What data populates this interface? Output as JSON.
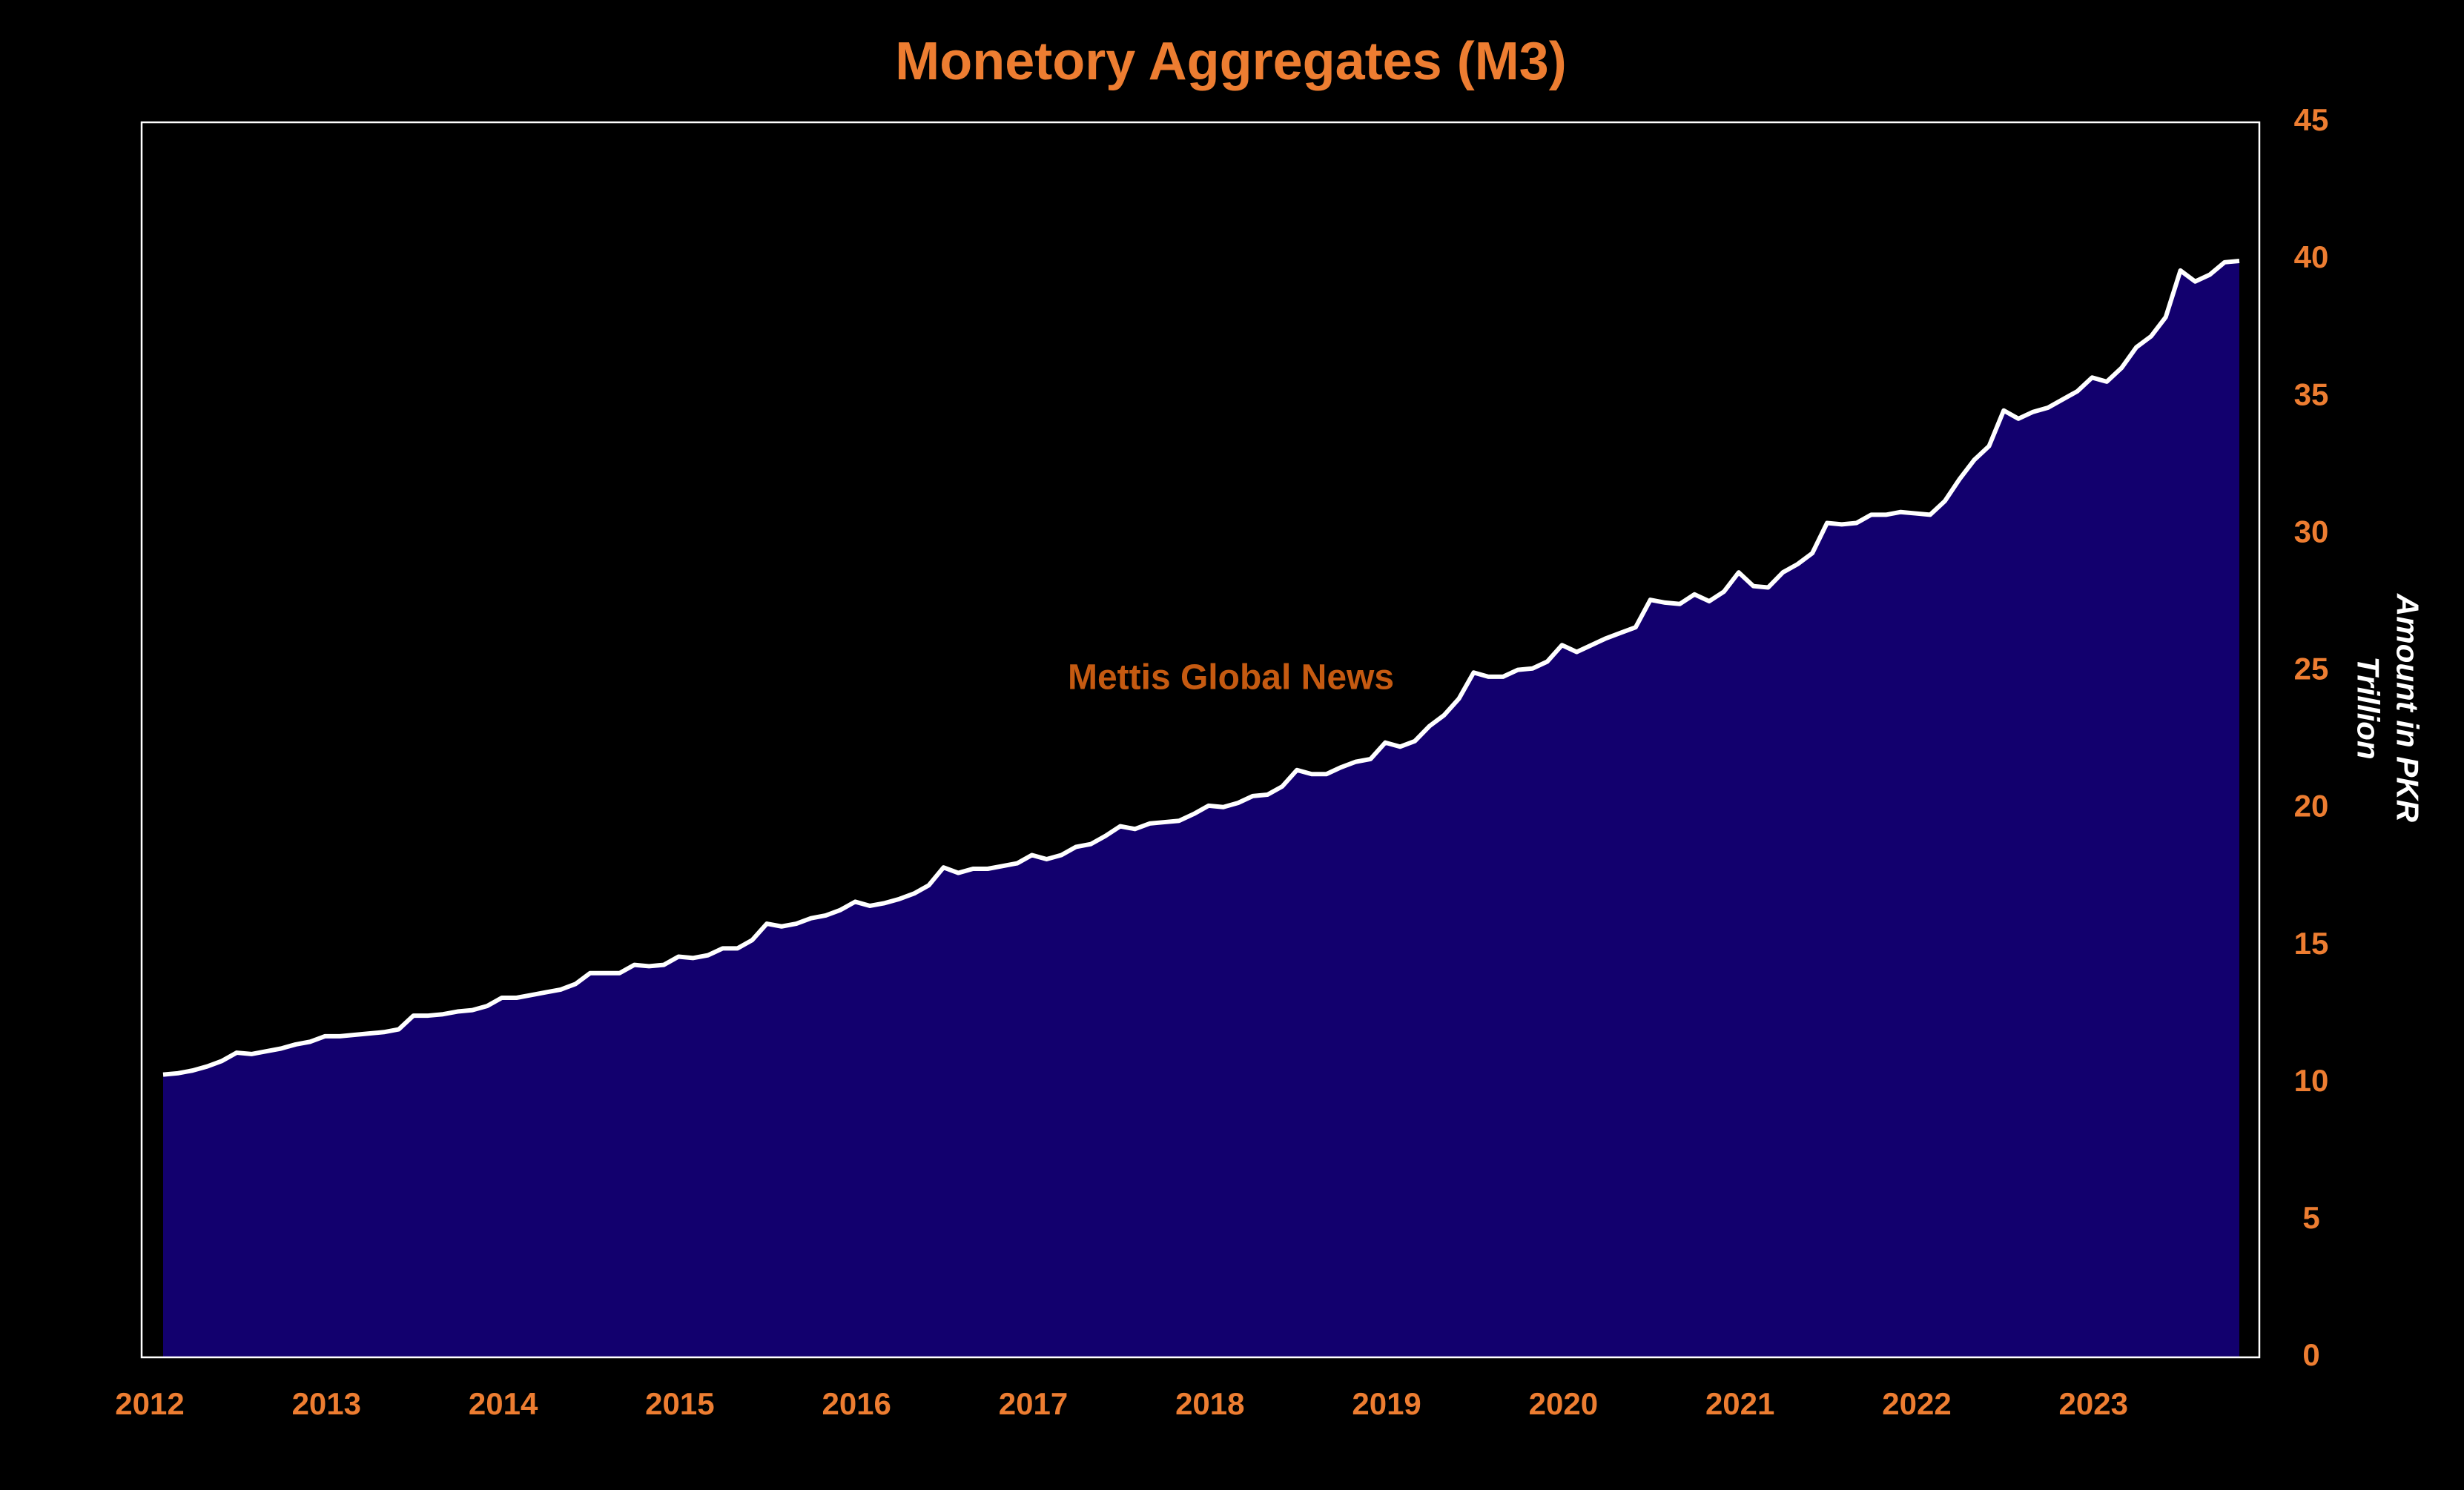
{
  "chart_data": {
    "type": "area",
    "title": "Monetory Aggregates (M3)",
    "annotation": "Mettis Global News",
    "y_label": "Amount in PKR Trillion",
    "y_axis_side": "right",
    "color": "#12006E",
    "line_color": "#FFFFFF",
    "text_color": "#ED7D31",
    "grid": false,
    "categories": [
      "2012",
      null,
      null,
      null,
      null,
      null,
      null,
      null,
      null,
      null,
      null,
      null,
      "2013",
      null,
      null,
      null,
      null,
      null,
      null,
      null,
      null,
      null,
      null,
      null,
      "2014",
      null,
      null,
      null,
      null,
      null,
      null,
      null,
      null,
      null,
      null,
      null,
      "2015",
      null,
      null,
      null,
      null,
      null,
      null,
      null,
      null,
      null,
      null,
      null,
      "2016",
      null,
      null,
      null,
      null,
      null,
      null,
      null,
      null,
      null,
      null,
      null,
      "2017",
      null,
      null,
      null,
      null,
      null,
      null,
      null,
      null,
      null,
      null,
      null,
      "2018",
      null,
      null,
      null,
      null,
      null,
      null,
      null,
      null,
      null,
      null,
      null,
      "2019",
      null,
      null,
      null,
      null,
      null,
      null,
      null,
      null,
      null,
      null,
      null,
      "2020",
      null,
      null,
      null,
      null,
      null,
      null,
      null,
      null,
      null,
      null,
      null,
      "2021",
      null,
      null,
      null,
      null,
      null,
      null,
      null,
      null,
      null,
      null,
      null,
      "2022",
      null,
      null,
      null,
      null,
      null,
      null,
      null,
      null,
      null,
      null,
      null,
      "2023",
      null,
      null,
      null,
      null,
      null,
      null,
      null,
      null,
      null
    ],
    "values": [
      10.3,
      10.35,
      10.45,
      10.6,
      10.8,
      11.1,
      11.05,
      11.15,
      11.25,
      11.4,
      11.5,
      11.7,
      11.7,
      11.75,
      11.8,
      11.85,
      11.95,
      12.45,
      12.45,
      12.5,
      12.6,
      12.65,
      12.8,
      13.1,
      13.1,
      13.2,
      13.3,
      13.4,
      13.6,
      14.0,
      14.0,
      14.0,
      14.3,
      14.25,
      14.3,
      14.6,
      14.55,
      14.65,
      14.9,
      14.9,
      15.2,
      15.8,
      15.7,
      15.8,
      16.0,
      16.1,
      16.3,
      16.6,
      16.45,
      16.55,
      16.7,
      16.9,
      17.2,
      17.85,
      17.65,
      17.8,
      17.8,
      17.9,
      18.0,
      18.3,
      18.15,
      18.3,
      18.6,
      18.7,
      19.0,
      19.35,
      19.25,
      19.45,
      19.5,
      19.55,
      19.8,
      20.1,
      20.05,
      20.2,
      20.45,
      20.5,
      20.8,
      21.4,
      21.25,
      21.25,
      21.5,
      21.7,
      21.8,
      22.4,
      22.25,
      22.45,
      23.0,
      23.4,
      24.0,
      24.95,
      24.8,
      24.8,
      25.05,
      25.1,
      25.35,
      25.95,
      25.7,
      25.95,
      26.2,
      26.4,
      26.6,
      27.6,
      27.5,
      27.45,
      27.8,
      27.55,
      27.9,
      28.6,
      28.1,
      28.05,
      28.6,
      28.9,
      29.3,
      30.4,
      30.35,
      30.4,
      30.7,
      30.7,
      30.8,
      30.75,
      30.7,
      31.2,
      32.0,
      32.7,
      33.2,
      34.5,
      34.2,
      34.45,
      34.6,
      34.9,
      35.2,
      35.7,
      35.55,
      36.05,
      36.8,
      37.2,
      37.9,
      39.6,
      39.2,
      39.45,
      39.9,
      39.95
    ],
    "ylim": [
      0,
      45
    ],
    "yticks": [
      0,
      5,
      10,
      15,
      20,
      25,
      30,
      35,
      40,
      45
    ]
  }
}
